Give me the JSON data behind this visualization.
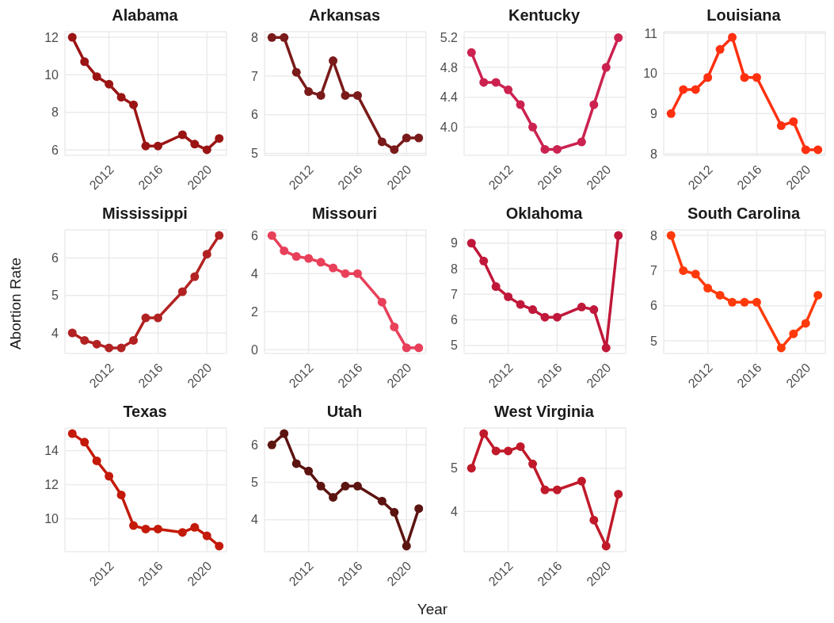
{
  "chart_data": [
    {
      "type": "line",
      "title": "Alabama",
      "x": [
        2009,
        2010,
        2011,
        2012,
        2013,
        2014,
        2015,
        2016,
        2018,
        2019,
        2020,
        2021
      ],
      "values": [
        12,
        10.7,
        9.9,
        9.5,
        8.8,
        8.4,
        6.2,
        6.2,
        6.8,
        6.3,
        6.0,
        6.6
      ],
      "color": "#9b1414",
      "xlim": [
        2008.4,
        2021.6
      ],
      "xticks": [
        2012,
        2016,
        2020
      ],
      "ylim": [
        5.7,
        12.3
      ],
      "yticks": [
        6,
        8,
        10,
        12
      ],
      "grid": true,
      "marker": "circle"
    },
    {
      "type": "line",
      "title": "Arkansas",
      "x": [
        2009,
        2010,
        2011,
        2012,
        2013,
        2014,
        2015,
        2016,
        2018,
        2019,
        2020,
        2021
      ],
      "values": [
        8,
        8,
        7.1,
        6.6,
        6.5,
        7.4,
        6.5,
        6.5,
        5.3,
        5.1,
        5.4,
        5.4
      ],
      "color": "#7a1a1a",
      "xlim": [
        2008.4,
        2021.6
      ],
      "xticks": [
        2012,
        2016,
        2020
      ],
      "ylim": [
        4.95,
        8.15
      ],
      "yticks": [
        5,
        6,
        7,
        8
      ],
      "grid": true,
      "marker": "circle"
    },
    {
      "type": "line",
      "title": "Kentucky",
      "x": [
        2009,
        2010,
        2011,
        2012,
        2013,
        2014,
        2015,
        2016,
        2018,
        2019,
        2020,
        2021
      ],
      "values": [
        5.0,
        4.6,
        4.6,
        4.5,
        4.3,
        4.0,
        3.7,
        3.7,
        3.8,
        4.3,
        4.8,
        5.2
      ],
      "color": "#cc2250",
      "xlim": [
        2008.4,
        2021.6
      ],
      "xticks": [
        2012,
        2016,
        2020
      ],
      "ylim": [
        3.62,
        5.28
      ],
      "yticks": [
        {
          "value": 4,
          "label": "4.0"
        },
        4.4,
        4.8,
        5.2
      ],
      "grid": true,
      "marker": "circle"
    },
    {
      "type": "line",
      "title": "Louisiana",
      "x": [
        2009,
        2010,
        2011,
        2012,
        2013,
        2014,
        2015,
        2016,
        2018,
        2019,
        2020,
        2021
      ],
      "values": [
        9.0,
        9.6,
        9.6,
        9.9,
        10.6,
        10.9,
        9.9,
        9.9,
        8.7,
        8.8,
        8.1,
        8.1
      ],
      "color": "#ff3010",
      "xlim": [
        2008.4,
        2021.6
      ],
      "xticks": [
        2012,
        2016,
        2020
      ],
      "ylim": [
        7.96,
        11.04
      ],
      "yticks": [
        8,
        9,
        10,
        11
      ],
      "grid": true,
      "marker": "circle"
    },
    {
      "type": "line",
      "title": "Mississippi",
      "ylabel": "Abortion Rate",
      "x": [
        2009,
        2010,
        2011,
        2012,
        2013,
        2014,
        2015,
        2016,
        2018,
        2019,
        2020,
        2021
      ],
      "values": [
        4.0,
        3.8,
        3.7,
        3.6,
        3.6,
        3.8,
        4.4,
        4.4,
        5.1,
        5.5,
        6.1,
        6.6
      ],
      "color": "#b22222",
      "xlim": [
        2008.4,
        2021.6
      ],
      "xticks": [
        2012,
        2016,
        2020
      ],
      "ylim": [
        3.45,
        6.75
      ],
      "yticks": [
        4,
        5,
        6
      ],
      "grid": true,
      "marker": "circle"
    },
    {
      "type": "line",
      "title": "Missouri",
      "x": [
        2009,
        2010,
        2011,
        2012,
        2013,
        2014,
        2015,
        2016,
        2018,
        2019,
        2020,
        2021
      ],
      "values": [
        6.0,
        5.2,
        4.9,
        4.8,
        4.6,
        4.3,
        4.0,
        4.0,
        2.5,
        1.2,
        0.1,
        0.1
      ],
      "color": "#e8405a",
      "xlim": [
        2008.4,
        2021.6
      ],
      "xticks": [
        2012,
        2016,
        2020
      ],
      "ylim": [
        -0.2,
        6.3
      ],
      "yticks": [
        0,
        2,
        4,
        6
      ],
      "grid": true,
      "marker": "circle"
    },
    {
      "type": "line",
      "title": "Oklahoma",
      "x": [
        2009,
        2010,
        2011,
        2012,
        2013,
        2014,
        2015,
        2016,
        2018,
        2019,
        2020,
        2021
      ],
      "values": [
        9.0,
        8.3,
        7.3,
        6.9,
        6.6,
        6.4,
        6.1,
        6.1,
        6.5,
        6.4,
        4.9,
        9.3
      ],
      "color": "#c0183a",
      "xlim": [
        2008.4,
        2021.6
      ],
      "xticks": [
        2012,
        2016,
        2020
      ],
      "ylim": [
        4.68,
        9.52
      ],
      "yticks": [
        5,
        6,
        7,
        8,
        9
      ],
      "grid": true,
      "marker": "circle"
    },
    {
      "type": "line",
      "title": "South Carolina",
      "x": [
        2009,
        2010,
        2011,
        2012,
        2013,
        2014,
        2015,
        2016,
        2018,
        2019,
        2020,
        2021
      ],
      "values": [
        8.0,
        7.0,
        6.9,
        6.5,
        6.3,
        6.1,
        6.1,
        6.1,
        4.8,
        5.2,
        5.5,
        6.3
      ],
      "color": "#ff3a0a",
      "xlim": [
        2008.4,
        2021.6
      ],
      "xticks": [
        2012,
        2016,
        2020
      ],
      "ylim": [
        4.64,
        8.16
      ],
      "yticks": [
        5,
        6,
        7,
        8
      ],
      "grid": true,
      "marker": "circle"
    },
    {
      "type": "line",
      "title": "Texas",
      "x": [
        2009,
        2010,
        2011,
        2012,
        2013,
        2014,
        2015,
        2016,
        2018,
        2019,
        2020,
        2021
      ],
      "values": [
        15.0,
        14.5,
        13.4,
        12.5,
        11.4,
        9.6,
        9.4,
        9.4,
        9.2,
        9.5,
        9.0,
        8.4
      ],
      "color": "#c41a0a",
      "xlim": [
        2008.4,
        2021.6
      ],
      "xticks": [
        2012,
        2016,
        2020
      ],
      "ylim": [
        8.07,
        15.33
      ],
      "yticks": [
        10,
        12,
        14
      ],
      "grid": true,
      "marker": "circle"
    },
    {
      "type": "line",
      "title": "Utah",
      "xlabel": "Year",
      "x": [
        2009,
        2010,
        2011,
        2012,
        2013,
        2014,
        2015,
        2016,
        2018,
        2019,
        2020,
        2021
      ],
      "values": [
        6.0,
        6.3,
        5.5,
        5.3,
        4.9,
        4.6,
        4.9,
        4.9,
        4.5,
        4.2,
        3.3,
        4.3
      ],
      "color": "#5c1410",
      "xlim": [
        2008.4,
        2021.6
      ],
      "xticks": [
        2012,
        2016,
        2020
      ],
      "ylim": [
        3.15,
        6.45
      ],
      "yticks": [
        4,
        5,
        6
      ],
      "grid": true,
      "marker": "circle"
    },
    {
      "type": "line",
      "title": "West Virginia",
      "x": [
        2009,
        2010,
        2011,
        2012,
        2013,
        2014,
        2015,
        2016,
        2018,
        2019,
        2020,
        2021
      ],
      "values": [
        5.0,
        5.8,
        5.4,
        5.4,
        5.5,
        5.1,
        4.5,
        4.5,
        4.7,
        3.8,
        3.2,
        4.4
      ],
      "color": "#c01a2a",
      "xlim": [
        2008.4,
        2021.6
      ],
      "xticks": [
        2012,
        2016,
        2020
      ],
      "ylim": [
        3.07,
        5.93
      ],
      "yticks": [
        4,
        5
      ],
      "grid": true,
      "marker": "circle"
    }
  ]
}
